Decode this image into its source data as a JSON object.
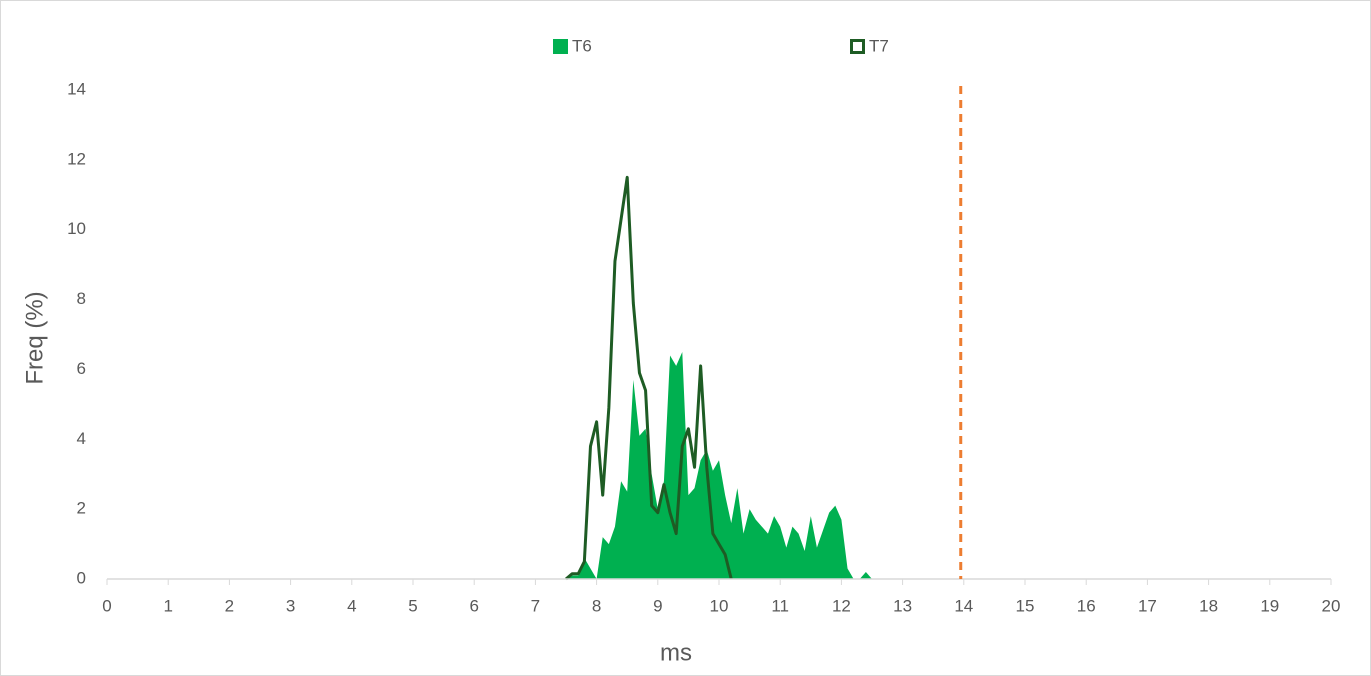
{
  "chart_data": {
    "type": "area_line",
    "x_label": "ms",
    "y_label": "Freq (%)",
    "x": [
      7.5,
      7.6,
      7.7,
      7.8,
      7.9,
      8.0,
      8.1,
      8.2,
      8.3,
      8.4,
      8.5,
      8.6,
      8.7,
      8.8,
      8.9,
      9.0,
      9.1,
      9.2,
      9.3,
      9.4,
      9.5,
      9.6,
      9.7,
      9.8,
      9.9,
      10.0,
      10.1,
      10.2,
      10.3,
      10.4,
      10.5,
      10.6,
      10.7,
      10.8,
      10.9,
      11.0,
      11.1,
      11.2,
      11.3,
      11.4,
      11.5,
      11.6,
      11.7,
      11.8,
      11.9,
      12.0,
      12.1,
      12.2,
      12.3,
      12.4,
      12.5
    ],
    "series": [
      {
        "name": "T6",
        "color": "#00b050",
        "style": "area",
        "values": [
          0,
          0.1,
          0.1,
          0.6,
          0.3,
          0,
          1.2,
          1.0,
          1.5,
          2.8,
          2.5,
          5.7,
          4.1,
          4.3,
          3.0,
          2.0,
          2.8,
          6.4,
          6.1,
          6.5,
          2.4,
          2.6,
          3.4,
          3.7,
          3.1,
          3.4,
          2.4,
          1.6,
          2.6,
          1.3,
          2.0,
          1.7,
          1.5,
          1.3,
          1.8,
          1.5,
          0.9,
          1.5,
          1.3,
          0.8,
          1.8,
          0.9,
          1.4,
          1.9,
          2.1,
          1.7,
          0.3,
          0,
          0,
          0.2,
          0
        ]
      },
      {
        "name": "T7",
        "color": "#1e5c24",
        "style": "line",
        "values": [
          0,
          0.15,
          0.15,
          0.5,
          3.8,
          4.5,
          2.4,
          4.9,
          9.1,
          10.3,
          11.5,
          7.9,
          5.9,
          5.4,
          2.1,
          1.9,
          2.7,
          1.9,
          1.3,
          3.8,
          4.3,
          3.2,
          6.1,
          3.2,
          1.3,
          1.0,
          0.7,
          0,
          null,
          null,
          null,
          null,
          null,
          null,
          null,
          null,
          null,
          null,
          null,
          null,
          null,
          null,
          null,
          null,
          null,
          null,
          null,
          null,
          null,
          null,
          null
        ]
      }
    ],
    "vline": {
      "x": 13.95,
      "color": "#ed7d31"
    },
    "xlim": [
      0,
      20
    ],
    "xticks": [
      0,
      1,
      2,
      3,
      4,
      5,
      6,
      7,
      8,
      9,
      10,
      11,
      12,
      13,
      14,
      15,
      16,
      17,
      18,
      19,
      20
    ],
    "ylim": [
      0,
      14
    ],
    "yticks": [
      0,
      2,
      4,
      6,
      8,
      10,
      12,
      14
    ],
    "legend": "top"
  }
}
